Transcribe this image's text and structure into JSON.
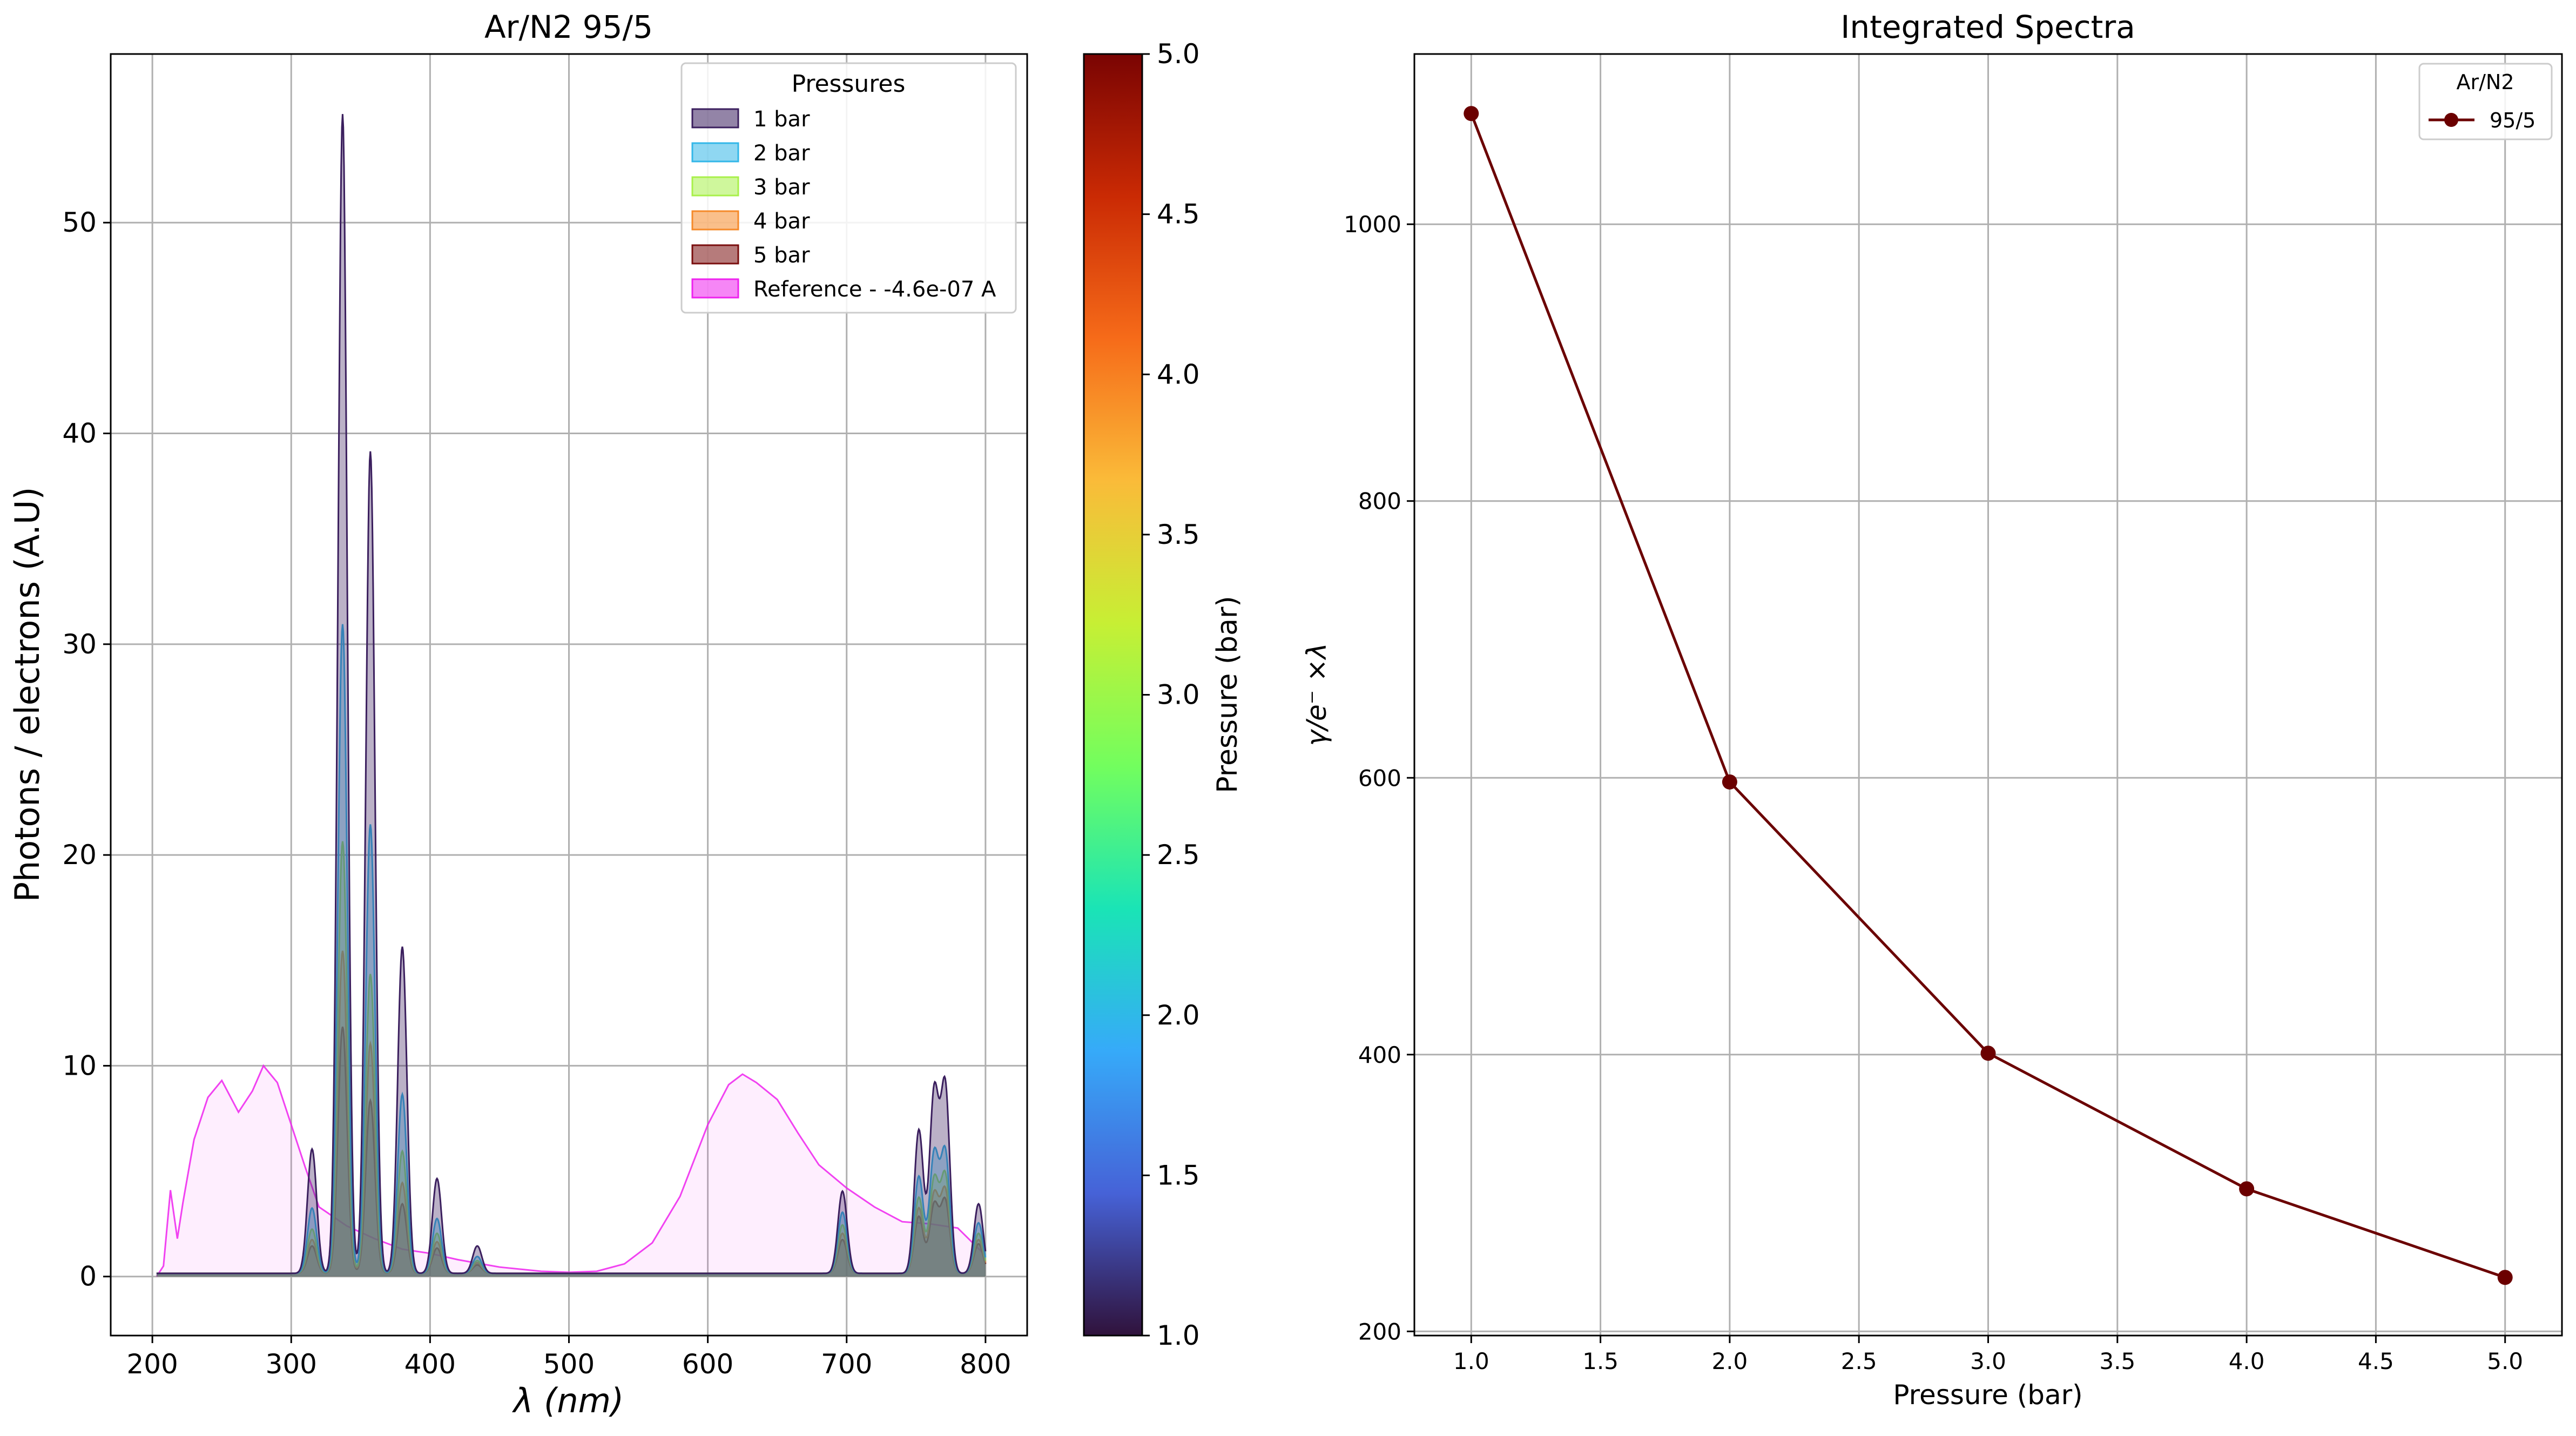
{
  "colors": {
    "p1": "#3b1f5e",
    "p2": "#33b7e8",
    "p3": "#a8f04a",
    "p4": "#f58a2a",
    "p5": "#7a0e0e",
    "reference": "#ee22ee",
    "integrated": "#6b0000",
    "grid": "#b0b0b0",
    "cbar_stops": [
      "#30123b",
      "#4662d7",
      "#36aaf9",
      "#1ae4b6",
      "#72fe5e",
      "#c7ef34",
      "#fabb39",
      "#f66b19",
      "#ca2a04",
      "#7a0403"
    ]
  },
  "chart_data": [
    {
      "type": "line",
      "title": "Ar/N2 95/5",
      "xlabel": "λ (nm)",
      "ylabel": "Photons / electrons (A.U)",
      "xlim": [
        170,
        830
      ],
      "ylim": [
        -2.8,
        58
      ],
      "xticks": [
        200,
        300,
        400,
        500,
        600,
        700,
        800
      ],
      "yticks": [
        0,
        10,
        20,
        30,
        40,
        50
      ],
      "grid": true,
      "legend": {
        "title": "Pressures",
        "placement": "top-right"
      },
      "series": [
        {
          "name": "1 bar",
          "pressure": 1,
          "peaks": [
            [
              315,
              5.9
            ],
            [
              337,
              55
            ],
            [
              357,
              39
            ],
            [
              380,
              15.5
            ],
            [
              405,
              4.5
            ],
            [
              434,
              1.3
            ],
            [
              697,
              3.9
            ],
            [
              752,
              6.8
            ],
            [
              763,
              8.5
            ],
            [
              771,
              8.8
            ],
            [
              795,
              3.3
            ]
          ]
        },
        {
          "name": "2 bar",
          "pressure": 2,
          "peaks": [
            [
              315,
              3.1
            ],
            [
              337,
              30.8
            ],
            [
              357,
              21.3
            ],
            [
              380,
              8.5
            ],
            [
              405,
              2.6
            ],
            [
              434,
              0.8
            ],
            [
              697,
              2.9
            ],
            [
              752,
              4.6
            ],
            [
              763,
              5.6
            ],
            [
              771,
              5.7
            ],
            [
              795,
              2.4
            ]
          ]
        },
        {
          "name": "3 bar",
          "pressure": 3,
          "peaks": [
            [
              315,
              2.1
            ],
            [
              337,
              20.5
            ],
            [
              357,
              14.2
            ],
            [
              380,
              5.8
            ],
            [
              405,
              1.9
            ],
            [
              434,
              0.6
            ],
            [
              697,
              2.3
            ],
            [
              752,
              3.6
            ],
            [
              763,
              4.4
            ],
            [
              771,
              4.6
            ],
            [
              795,
              1.9
            ]
          ]
        },
        {
          "name": "4 bar",
          "pressure": 4,
          "peaks": [
            [
              315,
              1.6
            ],
            [
              337,
              15.3
            ],
            [
              357,
              10.9
            ],
            [
              380,
              4.3
            ],
            [
              405,
              1.5
            ],
            [
              434,
              0.5
            ],
            [
              697,
              1.9
            ],
            [
              752,
              3.1
            ],
            [
              763,
              3.7
            ],
            [
              771,
              3.9
            ],
            [
              795,
              1.6
            ]
          ]
        },
        {
          "name": "5 bar",
          "pressure": 5,
          "peaks": [
            [
              315,
              1.3
            ],
            [
              337,
              11.7
            ],
            [
              357,
              8.2
            ],
            [
              380,
              3.3
            ],
            [
              405,
              1.2
            ],
            [
              434,
              0.4
            ],
            [
              697,
              1.6
            ],
            [
              752,
              2.7
            ],
            [
              763,
              3.2
            ],
            [
              771,
              3.4
            ],
            [
              795,
              1.4
            ]
          ]
        },
        {
          "name": "Reference - -4.6e-07 A",
          "x": [
            203,
            208,
            213,
            218,
            222,
            230,
            240,
            250,
            262,
            272,
            280,
            290,
            300,
            310,
            320,
            340,
            360,
            380,
            400,
            420,
            450,
            480,
            500,
            520,
            540,
            560,
            580,
            600,
            615,
            625,
            635,
            650,
            665,
            680,
            700,
            720,
            740,
            760,
            780,
            800
          ],
          "y": [
            0,
            0.5,
            4.1,
            1.8,
            3.5,
            6.5,
            8.5,
            9.3,
            7.8,
            8.8,
            10,
            9.2,
            7.2,
            5.2,
            3.3,
            2.4,
            1.8,
            1.3,
            1.1,
            0.8,
            0.45,
            0.25,
            0.2,
            0.25,
            0.6,
            1.6,
            3.8,
            7.2,
            9.1,
            9.6,
            9.2,
            8.4,
            6.8,
            5.3,
            4.2,
            3.3,
            2.6,
            2.5,
            2.3,
            1.0
          ]
        }
      ],
      "colorbar": {
        "label": "Pressure (bar)",
        "range": [
          1.0,
          5.0
        ],
        "ticks": [
          "1.0",
          "1.5",
          "2.0",
          "2.5",
          "3.0",
          "3.5",
          "4.0",
          "4.5",
          "5.0"
        ]
      }
    },
    {
      "type": "line",
      "title": "Integrated Spectra",
      "xlabel": "Pressure (bar)",
      "ylabel": "γ/e⁻ ×λ",
      "xlim": [
        0.78,
        5.22
      ],
      "ylim": [
        197,
        1123
      ],
      "xticks": [
        "1.0",
        "1.5",
        "2.0",
        "2.5",
        "3.0",
        "3.5",
        "4.0",
        "4.5",
        "5.0"
      ],
      "yticks": [
        200,
        400,
        600,
        800,
        1000
      ],
      "grid": true,
      "legend": {
        "title": "Ar/N2",
        "placement": "top-right"
      },
      "series": [
        {
          "name": "95/5",
          "x": [
            1,
            2,
            3,
            4,
            5
          ],
          "y": [
            1080,
            597,
            401,
            303,
            239
          ]
        }
      ]
    }
  ]
}
